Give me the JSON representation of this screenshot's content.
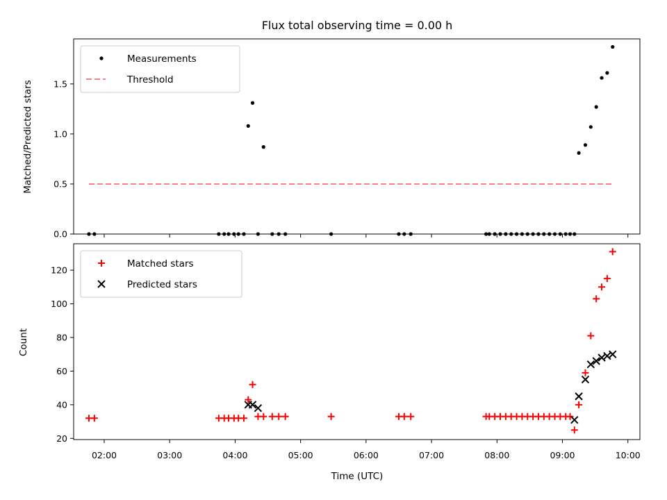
{
  "chart_data": [
    {
      "type": "scatter",
      "title": "Flux total observing time = 0.00 h",
      "xlabel": "",
      "ylabel": "Matched/Predicted stars",
      "xlim": [
        "01:32",
        "10:11"
      ],
      "ylim": [
        0,
        1.95
      ],
      "yticks": [
        "0.0",
        "0.5",
        "1.0",
        "1.5"
      ],
      "legend_position": "upper-left",
      "series": [
        {
          "name": "Measurements",
          "marker": "dot",
          "color": "#000000",
          "x": [
            "01:46",
            "01:51",
            "03:45",
            "03:50",
            "03:54",
            "03:59",
            "04:03",
            "04:08",
            "04:12",
            "04:16",
            "04:21",
            "04:26",
            "04:34",
            "04:40",
            "04:46",
            "05:28",
            "06:30",
            "06:35",
            "06:41",
            "07:50",
            "07:53",
            "07:58",
            "08:03",
            "08:08",
            "08:13",
            "08:18",
            "08:23",
            "08:28",
            "08:33",
            "08:38",
            "08:43",
            "08:48",
            "08:53",
            "08:58",
            "09:03",
            "09:07",
            "09:11",
            "09:15",
            "09:21",
            "09:26",
            "09:31",
            "09:36",
            "09:41",
            "09:46"
          ],
          "y": [
            0,
            0,
            0,
            0,
            0,
            0,
            0,
            0,
            1.08,
            1.31,
            0,
            0.87,
            0,
            0,
            0,
            0,
            0,
            0,
            0,
            0,
            0,
            0,
            0,
            0,
            0,
            0,
            0,
            0,
            0,
            0,
            0,
            0,
            0,
            0,
            0,
            0,
            0,
            0.81,
            0.89,
            1.07,
            1.27,
            1.56,
            1.61,
            1.87
          ]
        },
        {
          "name": "Threshold",
          "style": "dashed",
          "color": "#ff8080",
          "x": [
            "01:46",
            "09:46"
          ],
          "y": [
            0.5,
            0.5
          ]
        }
      ]
    },
    {
      "type": "scatter",
      "title": "",
      "xlabel": "Time (UTC)",
      "ylabel": "Count",
      "xlim": [
        "01:32",
        "10:11"
      ],
      "ylim": [
        19.3,
        135.7
      ],
      "xticks": [
        "02:00",
        "03:00",
        "04:00",
        "05:00",
        "06:00",
        "07:00",
        "08:00",
        "09:00",
        "10:00"
      ],
      "yticks": [
        "20",
        "40",
        "60",
        "80",
        "100",
        "120"
      ],
      "legend_position": "upper-left",
      "series": [
        {
          "name": "Matched stars",
          "marker": "plus",
          "color": "#ff0000",
          "x": [
            "01:46",
            "01:51",
            "03:45",
            "03:50",
            "03:54",
            "03:59",
            "04:03",
            "04:08",
            "04:12",
            "04:16",
            "04:21",
            "04:26",
            "04:34",
            "04:40",
            "04:46",
            "05:28",
            "06:30",
            "06:35",
            "06:41",
            "07:50",
            "07:53",
            "07:58",
            "08:03",
            "08:08",
            "08:13",
            "08:18",
            "08:23",
            "08:28",
            "08:33",
            "08:38",
            "08:43",
            "08:48",
            "08:53",
            "08:58",
            "09:03",
            "09:07",
            "09:11",
            "09:15",
            "09:21",
            "09:26",
            "09:31",
            "09:36",
            "09:41",
            "09:46"
          ],
          "y": [
            32,
            32,
            32,
            32,
            32,
            32,
            32,
            32,
            43,
            52,
            33,
            33,
            33,
            33,
            33,
            33,
            33,
            33,
            33,
            33,
            33,
            33,
            33,
            33,
            33,
            33,
            33,
            33,
            33,
            33,
            33,
            33,
            33,
            33,
            33,
            33,
            25,
            40,
            59,
            81,
            103,
            110,
            115,
            131
          ]
        },
        {
          "name": "Predicted stars",
          "marker": "x",
          "color": "#000000",
          "x": [
            "04:12",
            "04:16",
            "04:21",
            "09:11",
            "09:15",
            "09:21",
            "09:26",
            "09:31",
            "09:36",
            "09:41",
            "09:46"
          ],
          "y": [
            40,
            40,
            38,
            31,
            45,
            55,
            64,
            66,
            68,
            69,
            70
          ]
        }
      ]
    }
  ]
}
